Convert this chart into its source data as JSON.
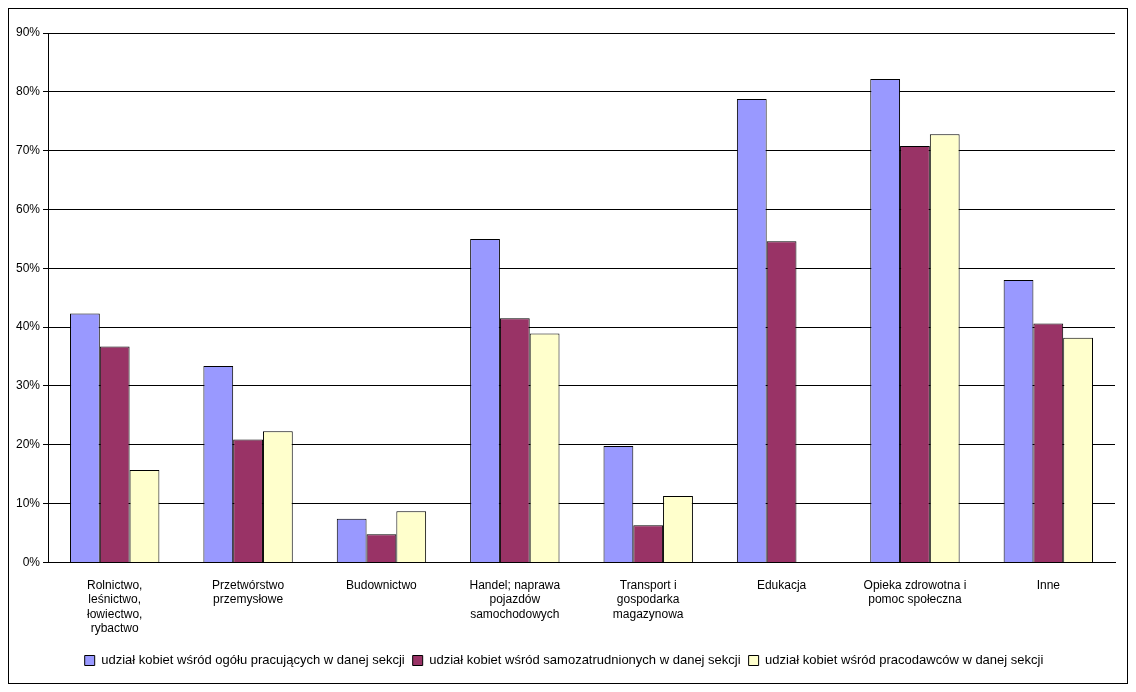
{
  "chart_data": {
    "type": "bar",
    "categories": [
      "Rolnictwo, leśnictwo, łowiectwo, rybactwo",
      "Przetwórstwo przemysłowe",
      "Budownictwo",
      "Handel; naprawa pojazdów samochodowych",
      "Transport i gospodarka magazynowa",
      "Edukacja",
      "Opieka zdrowotna i pomoc społeczna",
      "Inne"
    ],
    "series": [
      {
        "name": "udział kobiet wśród ogółu pracujących w danej sekcji",
        "color": "#9999ff",
        "values": [
          42.3,
          33.4,
          7.4,
          55,
          19.8,
          78.8,
          82.2,
          48
        ]
      },
      {
        "name": "udział kobiet wśród samozatrudnionych w danej sekcji",
        "color": "#993366",
        "values": [
          36.7,
          20.9,
          4.8,
          41.5,
          6.3,
          54.6,
          70.8,
          40.6
        ]
      },
      {
        "name": "udział kobiet wśród pracodawców w danej sekcji",
        "color": "#ffffcc",
        "values": [
          15.7,
          22.3,
          8.7,
          38.9,
          11.3,
          null,
          72.8,
          38.2
        ]
      }
    ],
    "ylim": [
      0,
      90
    ],
    "yticks": [
      {
        "value": 0,
        "label": "0%"
      },
      {
        "value": 10,
        "label": "10%"
      },
      {
        "value": 20,
        "label": "20%"
      },
      {
        "value": 30,
        "label": "30%"
      },
      {
        "value": 40,
        "label": "40%"
      },
      {
        "value": 50,
        "label": "50%"
      },
      {
        "value": 60,
        "label": "60%"
      },
      {
        "value": 70,
        "label": "70%"
      },
      {
        "value": 80,
        "label": "80%"
      },
      {
        "value": 90,
        "label": "90%"
      }
    ],
    "grid": "y",
    "legend": "bottom"
  }
}
